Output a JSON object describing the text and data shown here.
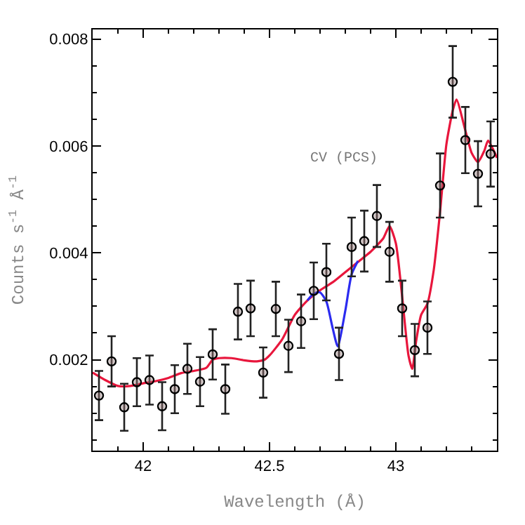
{
  "chart_data": {
    "type": "scatter",
    "xlabel": "Wavelength (Å)",
    "ylabel": "Counts s$^{-1}$ Å$^{-1}$",
    "annotations": [
      "CV (PCS)"
    ],
    "xlim": [
      41.8,
      43.4
    ],
    "xticks": [
      42,
      42.5,
      43
    ],
    "ylim": [
      0.0003,
      0.00818
    ],
    "yticks": [
      0.002,
      0.004,
      0.006,
      0.008
    ],
    "series": [
      {
        "color": "#000000",
        "marker": "circle",
        "x": [
          41.825,
          41.875,
          41.925,
          41.975,
          42.025,
          42.075,
          42.125,
          42.175,
          42.225,
          42.275,
          42.325,
          42.375,
          42.425,
          42.475,
          42.525,
          42.575,
          42.625,
          42.675,
          42.725,
          42.775,
          42.825,
          42.875,
          42.925,
          42.975,
          43.025,
          43.075,
          43.125,
          43.175,
          43.225,
          43.275,
          43.325,
          43.375
        ],
        "values": [
          0.00133,
          0.00197,
          0.00111,
          0.00158,
          0.00162,
          0.00113,
          0.00145,
          0.00183,
          0.00159,
          0.0021,
          0.00145,
          0.0029,
          0.00296,
          0.00176,
          0.00295,
          0.00226,
          0.00272,
          0.00329,
          0.00364,
          0.00211,
          0.00411,
          0.00422,
          0.00469,
          0.00402,
          0.00296,
          0.00218,
          0.0026,
          0.00526,
          0.0072,
          0.00611,
          0.00548,
          0.00585
        ],
        "errors": [
          0.00046,
          0.00047,
          0.00044,
          0.00045,
          0.00046,
          0.00045,
          0.00045,
          0.00047,
          0.00046,
          0.00047,
          0.00046,
          0.00052,
          0.00052,
          0.00047,
          0.00051,
          0.00049,
          0.0005,
          0.00053,
          0.00053,
          0.00049,
          0.00055,
          0.00057,
          0.00058,
          0.00056,
          0.00052,
          0.00049,
          0.00049,
          0.0006,
          0.00067,
          0.00062,
          0.00061,
          0.00061
        ]
      },
      {
        "type": "line",
        "color": "#e8163c",
        "marker": "none",
        "line_style": "solid",
        "x": [
          41.8,
          41.85,
          41.9,
          41.95,
          42.0,
          42.05,
          42.1,
          42.15,
          42.2,
          42.25,
          42.275,
          42.3,
          42.35,
          42.4,
          42.45,
          42.48,
          42.5,
          42.55,
          42.6,
          42.65,
          42.7,
          42.75,
          42.8,
          42.85,
          42.9,
          42.925,
          42.95,
          42.975,
          43.0,
          43.025,
          43.05,
          43.065,
          43.08,
          43.1,
          43.125,
          43.15,
          43.175,
          43.2,
          43.225,
          43.24,
          43.275,
          43.3,
          43.325,
          43.35,
          43.365,
          43.4
        ],
        "values": [
          0.00176,
          0.00162,
          0.00151,
          0.00151,
          0.00156,
          0.0016,
          0.00166,
          0.00175,
          0.00179,
          0.00185,
          0.002,
          0.00203,
          0.00203,
          0.00199,
          0.00197,
          0.002,
          0.00208,
          0.00238,
          0.00284,
          0.00311,
          0.0033,
          0.00345,
          0.00364,
          0.00383,
          0.00402,
          0.00414,
          0.00427,
          0.0045,
          0.00418,
          0.00318,
          0.00208,
          0.00183,
          0.00234,
          0.00284,
          0.00305,
          0.00368,
          0.00477,
          0.00603,
          0.00666,
          0.00687,
          0.00629,
          0.00587,
          0.0057,
          0.00591,
          0.0061,
          0.00578
        ]
      },
      {
        "type": "line",
        "color": "#2b2bf0",
        "marker": "none",
        "line_style": "solid",
        "x": [
          42.65,
          42.675,
          42.7,
          42.725,
          42.75,
          42.77,
          42.8,
          42.825,
          42.85
        ],
        "values": [
          0.00311,
          0.00324,
          0.00326,
          0.00309,
          0.00259,
          0.00225,
          0.00292,
          0.0036,
          0.00385
        ]
      }
    ]
  }
}
